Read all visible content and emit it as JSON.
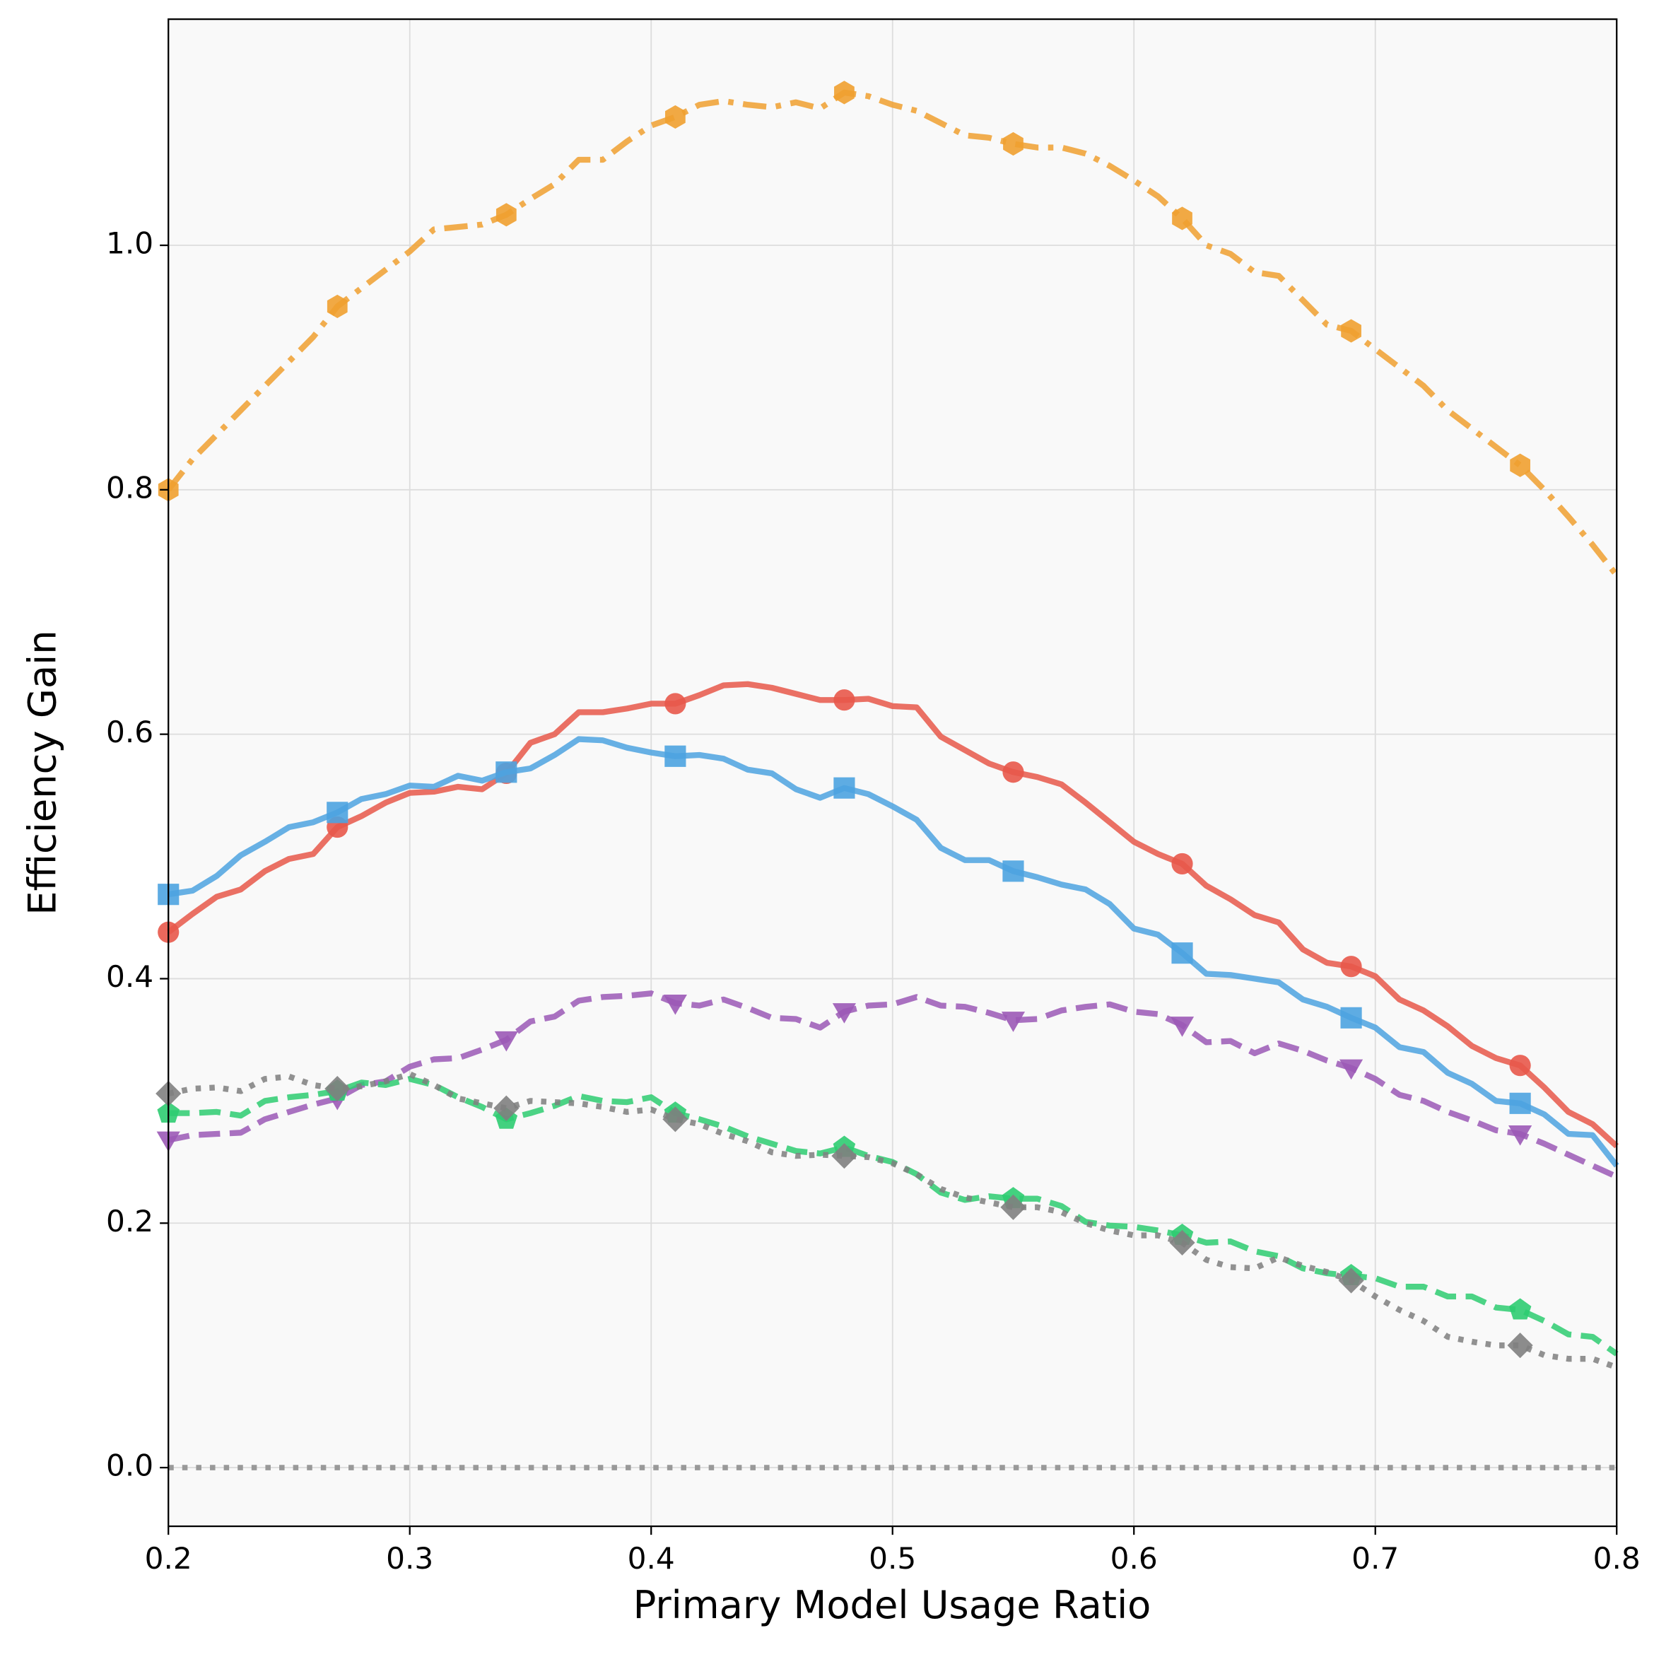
{
  "chart_data": {
    "type": "line",
    "xlabel": "Primary Model Usage Ratio",
    "ylabel": "Efficiency Gain",
    "x": [
      0.2,
      0.21,
      0.22,
      0.23,
      0.24,
      0.25,
      0.26,
      0.27,
      0.28,
      0.29,
      0.3,
      0.31,
      0.32,
      0.33,
      0.34,
      0.35,
      0.36,
      0.37,
      0.38,
      0.39,
      0.4,
      0.41,
      0.42,
      0.43,
      0.44,
      0.45,
      0.46,
      0.47,
      0.48,
      0.49,
      0.5,
      0.51,
      0.52,
      0.53,
      0.54,
      0.55,
      0.56,
      0.57,
      0.58,
      0.59,
      0.6,
      0.61,
      0.62,
      0.63,
      0.64,
      0.65,
      0.66,
      0.67,
      0.68,
      0.69,
      0.7,
      0.71,
      0.72,
      0.73,
      0.74,
      0.75,
      0.76,
      0.77,
      0.78,
      0.79,
      0.8
    ],
    "xlim": [
      0.2,
      0.8
    ],
    "xticks": [
      0.2,
      0.3,
      0.4,
      0.5,
      0.6,
      0.7,
      0.8
    ],
    "ylim": [
      -0.048,
      1.185
    ],
    "yticks": [
      {
        "value": 0,
        "label": "0.0"
      },
      0.2,
      0.4,
      0.6,
      0.8,
      {
        "value": 1,
        "label": "1.0"
      }
    ],
    "grid": true,
    "reference_line": {
      "value": 0,
      "color": "#999999",
      "linestyle": "dotted"
    },
    "markevery": 7,
    "series": [
      {
        "color": "#f0a030",
        "linestyle": "dashdot",
        "marker": "hexagon",
        "values": [
          0.8,
          0.825,
          0.845,
          0.865,
          0.885,
          0.905,
          0.925,
          0.95,
          0.965,
          0.98,
          0.995,
          1.013,
          1.015,
          1.017,
          1.025,
          1.038,
          1.05,
          1.07,
          1.07,
          1.085,
          1.098,
          1.105,
          1.115,
          1.118,
          1.115,
          1.113,
          1.117,
          1.112,
          1.125,
          1.122,
          1.115,
          1.11,
          1.1,
          1.09,
          1.088,
          1.083,
          1.08,
          1.08,
          1.075,
          1.065,
          1.053,
          1.04,
          1.022,
          1.0,
          0.993,
          0.978,
          0.975,
          0.955,
          0.935,
          0.93,
          0.915,
          0.9,
          0.885,
          0.865,
          0.85,
          0.835,
          0.82,
          0.8,
          0.778,
          0.755,
          0.73
        ]
      },
      {
        "color": "#e8584a",
        "linestyle": "solid",
        "marker": "circle",
        "values": [
          0.438,
          0.453,
          0.467,
          0.473,
          0.488,
          0.498,
          0.502,
          0.524,
          0.533,
          0.544,
          0.552,
          0.553,
          0.557,
          0.555,
          0.568,
          0.593,
          0.6,
          0.618,
          0.618,
          0.621,
          0.625,
          0.625,
          0.632,
          0.64,
          0.641,
          0.638,
          0.633,
          0.628,
          0.628,
          0.629,
          0.623,
          0.622,
          0.598,
          0.587,
          0.576,
          0.569,
          0.565,
          0.559,
          0.544,
          0.528,
          0.512,
          0.502,
          0.494,
          0.476,
          0.465,
          0.452,
          0.446,
          0.424,
          0.413,
          0.41,
          0.402,
          0.383,
          0.374,
          0.361,
          0.345,
          0.335,
          0.329,
          0.311,
          0.291,
          0.281,
          0.263
        ]
      },
      {
        "color": "#4da3e0",
        "linestyle": "solid",
        "marker": "square",
        "values": [
          0.469,
          0.472,
          0.484,
          0.501,
          0.512,
          0.524,
          0.528,
          0.536,
          0.547,
          0.551,
          0.558,
          0.557,
          0.566,
          0.562,
          0.569,
          0.572,
          0.583,
          0.596,
          0.595,
          0.589,
          0.585,
          0.582,
          0.583,
          0.58,
          0.571,
          0.568,
          0.555,
          0.548,
          0.556,
          0.551,
          0.541,
          0.53,
          0.507,
          0.497,
          0.497,
          0.488,
          0.483,
          0.477,
          0.473,
          0.461,
          0.441,
          0.436,
          0.421,
          0.404,
          0.403,
          0.4,
          0.397,
          0.383,
          0.377,
          0.368,
          0.36,
          0.344,
          0.34,
          0.323,
          0.314,
          0.3,
          0.298,
          0.289,
          0.273,
          0.272,
          0.247
        ]
      },
      {
        "color": "#9b59b6",
        "linestyle": "dashed",
        "marker": "triangle-down",
        "values": [
          0.268,
          0.272,
          0.273,
          0.274,
          0.285,
          0.291,
          0.297,
          0.302,
          0.313,
          0.316,
          0.328,
          0.334,
          0.335,
          0.342,
          0.35,
          0.365,
          0.369,
          0.382,
          0.385,
          0.386,
          0.388,
          0.38,
          0.378,
          0.383,
          0.376,
          0.368,
          0.367,
          0.36,
          0.373,
          0.378,
          0.379,
          0.385,
          0.378,
          0.377,
          0.372,
          0.366,
          0.367,
          0.374,
          0.377,
          0.379,
          0.373,
          0.371,
          0.362,
          0.348,
          0.349,
          0.339,
          0.347,
          0.341,
          0.333,
          0.327,
          0.318,
          0.305,
          0.3,
          0.291,
          0.284,
          0.276,
          0.273,
          0.265,
          0.256,
          0.247,
          0.238
        ]
      },
      {
        "color": "#2ecc71",
        "linestyle": "dashed",
        "marker": "pentagon",
        "values": [
          0.29,
          0.29,
          0.291,
          0.288,
          0.3,
          0.303,
          0.305,
          0.308,
          0.315,
          0.313,
          0.318,
          0.313,
          0.303,
          0.295,
          0.285,
          0.29,
          0.296,
          0.304,
          0.3,
          0.299,
          0.303,
          0.29,
          0.285,
          0.279,
          0.271,
          0.265,
          0.259,
          0.257,
          0.262,
          0.255,
          0.25,
          0.24,
          0.225,
          0.219,
          0.222,
          0.22,
          0.22,
          0.214,
          0.201,
          0.198,
          0.197,
          0.194,
          0.19,
          0.184,
          0.185,
          0.177,
          0.173,
          0.163,
          0.159,
          0.157,
          0.155,
          0.148,
          0.148,
          0.14,
          0.14,
          0.131,
          0.129,
          0.12,
          0.109,
          0.107,
          0.093
        ]
      },
      {
        "color": "#7f7f7f",
        "linestyle": "dotted",
        "marker": "diamond",
        "values": [
          0.306,
          0.31,
          0.311,
          0.308,
          0.318,
          0.32,
          0.313,
          0.31,
          0.312,
          0.316,
          0.322,
          0.313,
          0.302,
          0.298,
          0.294,
          0.3,
          0.299,
          0.298,
          0.295,
          0.291,
          0.293,
          0.285,
          0.281,
          0.273,
          0.267,
          0.258,
          0.255,
          0.256,
          0.255,
          0.254,
          0.249,
          0.24,
          0.228,
          0.221,
          0.217,
          0.213,
          0.213,
          0.209,
          0.2,
          0.194,
          0.19,
          0.19,
          0.184,
          0.17,
          0.164,
          0.163,
          0.172,
          0.165,
          0.16,
          0.153,
          0.14,
          0.129,
          0.12,
          0.107,
          0.103,
          0.1,
          0.1,
          0.092,
          0.089,
          0.089,
          0.082
        ]
      }
    ]
  }
}
